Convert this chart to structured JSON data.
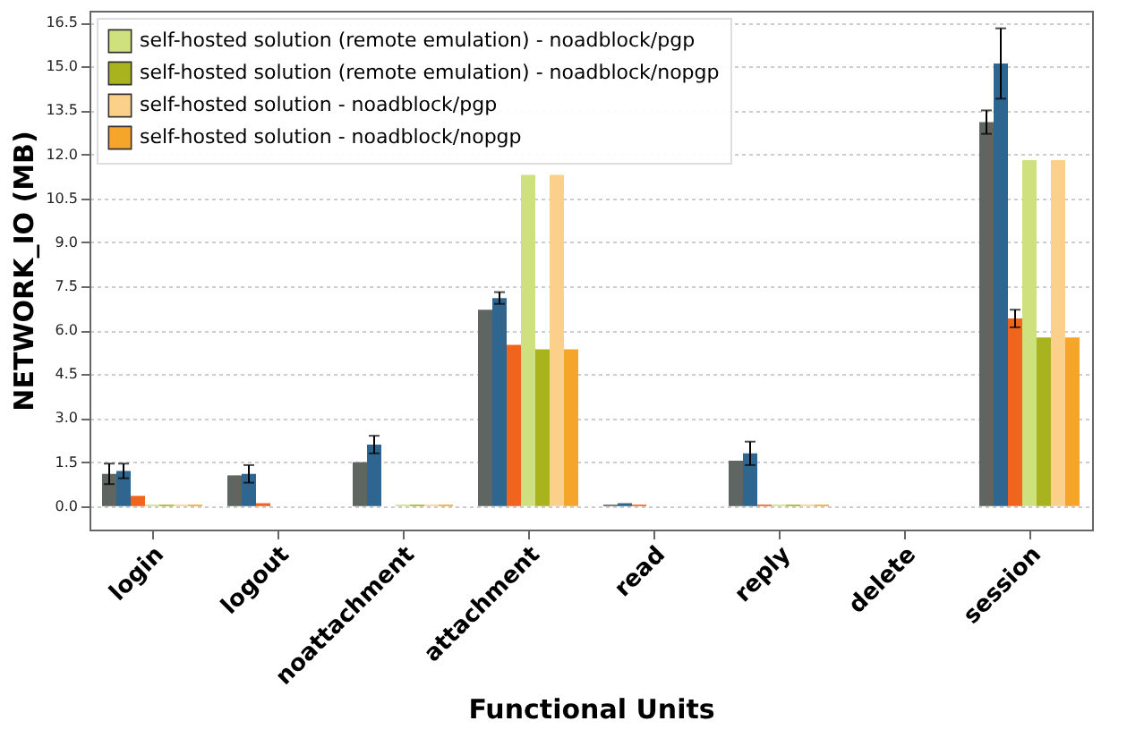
{
  "chart_data": {
    "type": "bar",
    "xlabel": "Functional Units",
    "ylabel": "NETWORK_IO (MB)",
    "categories": [
      "login",
      "logout",
      "noattachment",
      "attachment",
      "read",
      "reply",
      "delete",
      "session"
    ],
    "ylim": [
      -0.8,
      16.9
    ],
    "yticks": [
      {
        "value": 0,
        "label": "0.0"
      },
      {
        "value": 1.5,
        "label": "1.5"
      },
      {
        "value": 3,
        "label": "3.0"
      },
      {
        "value": 4.5,
        "label": "4.5"
      },
      {
        "value": 6,
        "label": "6.0"
      },
      {
        "value": 7.5,
        "label": "7.5"
      },
      {
        "value": 9,
        "label": "9.0"
      },
      {
        "value": 10.5,
        "label": "10.5"
      },
      {
        "value": 12,
        "label": "12.0"
      },
      {
        "value": 13.5,
        "label": "13.5"
      },
      {
        "value": 15,
        "label": "15.0"
      },
      {
        "value": 16.5,
        "label": "16.5"
      }
    ],
    "grid": "y",
    "legend": "top left",
    "series": [
      {
        "color": "#5f6661",
        "values": [
          1.1,
          1.05,
          1.5,
          6.7,
          0.05,
          1.55,
          0,
          13.1
        ],
        "errors": [
          0.35,
          null,
          null,
          null,
          null,
          null,
          null,
          0.4
        ]
      },
      {
        "color": "#2f6690",
        "values": [
          1.2,
          1.1,
          2.1,
          7.1,
          0.1,
          1.8,
          0,
          15.1
        ],
        "errors": [
          0.25,
          0.3,
          0.3,
          0.2,
          null,
          0.4,
          null,
          1.2
        ]
      },
      {
        "color": "#f0641e",
        "values": [
          0.35,
          0.1,
          0,
          5.5,
          0.05,
          0.05,
          0,
          6.4
        ],
        "errors": [
          null,
          null,
          null,
          null,
          null,
          null,
          null,
          0.3
        ]
      },
      {
        "name": "self-hosted solution (remote emulation) - noadblock/pgp",
        "color": "#cfe07f",
        "values": [
          0.05,
          0,
          0.05,
          11.3,
          0,
          0.05,
          0,
          11.8
        ]
      },
      {
        "name": "self-hosted solution (remote emulation) - noadblock/nopgp",
        "color": "#a8b31d",
        "values": [
          0.05,
          0,
          0.05,
          5.35,
          0,
          0.05,
          0,
          5.75
        ]
      },
      {
        "name": "self-hosted solution - noadblock/pgp",
        "color": "#fad08a",
        "values": [
          0.05,
          0,
          0.05,
          11.3,
          0,
          0.05,
          0,
          11.8
        ]
      },
      {
        "name": "self-hosted solution - noadblock/nopgp",
        "color": "#f5a52a",
        "values": [
          0.05,
          0,
          0.05,
          5.35,
          0,
          0.05,
          0,
          5.75
        ]
      }
    ]
  }
}
